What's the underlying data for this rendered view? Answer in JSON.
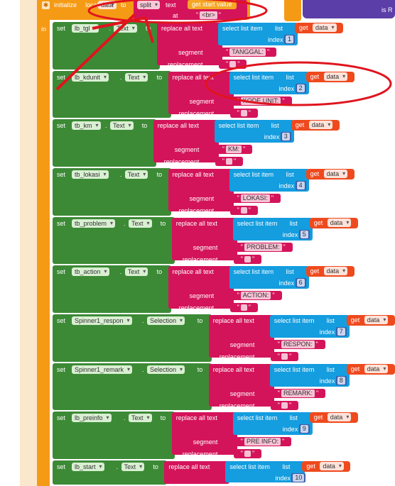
{
  "header": {
    "initialize": "initialize",
    "local": "local",
    "var_name": "data",
    "to": "to",
    "split": "split",
    "text": "text",
    "get_start_value": "get start value",
    "at": "at",
    "separator": "<br>",
    "in": "in",
    "side_label": "is R"
  },
  "labels": {
    "set": "set",
    "dot": ".",
    "to": "to",
    "replace_all_text": "replace all text",
    "segment": "segment",
    "replacement": "replacement",
    "select_list_item": "select list item",
    "list": "list",
    "get": "get",
    "data": "data",
    "index": "index"
  },
  "rows": [
    {
      "component": "lb_tgl",
      "property": "Text",
      "segment": "TANGGAL:",
      "index": "1"
    },
    {
      "component": "lb_kdunit",
      "property": "Text",
      "segment": "KODE UNIT:",
      "index": "2"
    },
    {
      "component": "tb_km",
      "property": "Text",
      "segment": "KM:",
      "index": "3"
    },
    {
      "component": "tb_lokasi",
      "property": "Text",
      "segment": "LOKASI:",
      "index": "4"
    },
    {
      "component": "tb_problem",
      "property": "Text",
      "segment": "PROBLEM:",
      "index": "5"
    },
    {
      "component": "tb_action",
      "property": "Text",
      "segment": "ACTION:",
      "index": "6"
    },
    {
      "component": "Spinner1_respon",
      "property": "Selection",
      "segment": "RESPON:",
      "index": "7"
    },
    {
      "component": "Spinner1_remark",
      "property": "Selection",
      "segment": "REMARK:",
      "index": "8"
    },
    {
      "component": "lb_preinfo",
      "property": "Text",
      "segment": "PRE INFO:",
      "index": "9"
    },
    {
      "component": "lb_start",
      "property": "Text",
      "segment": "",
      "index": "10"
    }
  ],
  "colors": {
    "outer_block": "#f59a15",
    "set_block": "#3c8a36",
    "text_block": "#d4145a",
    "list_block": "#149ddf",
    "variable_block": "#ee4a1e",
    "annotation": "#e0141e"
  }
}
